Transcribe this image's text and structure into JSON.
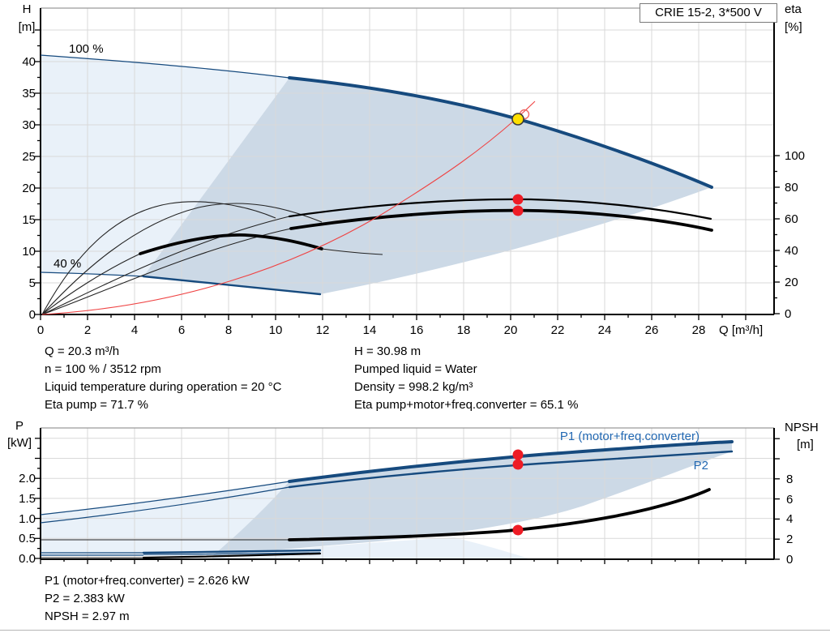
{
  "window": {
    "product_label": "CRIE 15-2, 3*500 V"
  },
  "top_chart": {
    "y_left_axis": {
      "name": "H",
      "unit": "[m]",
      "ticks": [
        "0",
        "5",
        "10",
        "15",
        "20",
        "25",
        "30",
        "35",
        "40"
      ]
    },
    "y_right_axis": {
      "name": "eta",
      "unit": "[%]",
      "ticks": [
        "0",
        "20",
        "40",
        "60",
        "80",
        "100"
      ]
    },
    "x_axis": {
      "ticks": [
        "0",
        "2",
        "4",
        "6",
        "8",
        "10",
        "12",
        "14",
        "16",
        "18",
        "20",
        "22",
        "24",
        "26",
        "28"
      ],
      "label": "Q [m³/h]"
    },
    "annotations": {
      "speed_100": "100 %",
      "speed_40": "40 %"
    }
  },
  "bottom_chart": {
    "y_left_axis": {
      "name": "P",
      "unit": "[kW]",
      "ticks": [
        "0.0",
        "0.5",
        "1.0",
        "1.5",
        "2.0"
      ]
    },
    "y_right_axis": {
      "name": "NPSH",
      "unit": "[m]",
      "ticks": [
        "0",
        "2",
        "4",
        "6",
        "8"
      ]
    },
    "curve_labels": {
      "p1": "P1 (motor+freq.converter)",
      "p2": "P2"
    }
  },
  "info_top": {
    "left": [
      "Q = 20.3 m³/h",
      "n = 100 % / 3512 rpm",
      "Liquid temperature during operation = 20 °C",
      "Eta pump = 71.7 %"
    ],
    "right": [
      "H = 30.98 m",
      "Pumped liquid = Water",
      "Density = 998.2 kg/m³",
      "Eta pump+motor+freq.converter = 65.1 %"
    ]
  },
  "info_bottom": {
    "lines": [
      "P1 (motor+freq.converter) = 2.626 kW",
      "P2 = 2.383 kW",
      "NPSH = 2.97 m"
    ]
  },
  "colors": {
    "curve_navy": "#164a7e",
    "curve_black": "#000000",
    "system_red": "#ef4444",
    "dot_red": "#ee1c25",
    "duty_yellow": "#ffdf00",
    "fill_pale": "#e9f1f9",
    "fill_envelope": "#ccd9e6",
    "label_blue": "#2268b2"
  },
  "chart_data": [
    {
      "type": "line",
      "title": "CRIE 15-2, 3*500 V",
      "xlabel": "Q [m³/h]",
      "xlim": [
        0,
        31.4
      ],
      "ylabel_left": "H [m]",
      "ylim_left": [
        0,
        48.5
      ],
      "ylabel_right": "eta [%]",
      "ylim_right": [
        0,
        100
      ],
      "grid": true,
      "series": [
        {
          "name": "head 100% speed",
          "axis": "left",
          "points": [
            [
              0,
              41
            ],
            [
              5,
              40.2
            ],
            [
              10.6,
              37.6
            ],
            [
              15,
              35.2
            ],
            [
              20.3,
              30.98
            ],
            [
              25,
              25.5
            ],
            [
              28.6,
              20.3
            ]
          ]
        },
        {
          "name": "head 40% speed",
          "axis": "left",
          "points": [
            [
              0,
              6.7
            ],
            [
              4.4,
              6.1
            ],
            [
              8,
              4.9
            ],
            [
              11.9,
              3.2
            ]
          ]
        },
        {
          "name": "eta pump",
          "axis": "right",
          "points": [
            [
              0,
              0
            ],
            [
              5,
              30
            ],
            [
              10.6,
              61
            ],
            [
              15,
              68.5
            ],
            [
              20.3,
              71.7
            ],
            [
              25,
              69.5
            ],
            [
              28.5,
              60
            ]
          ]
        },
        {
          "name": "eta pump+motor+freq.converter",
          "axis": "right",
          "points": [
            [
              0,
              0
            ],
            [
              5,
              24
            ],
            [
              10.6,
              53.5
            ],
            [
              15,
              62
            ],
            [
              20.3,
              65.1
            ],
            [
              25,
              64
            ],
            [
              28.5,
              53
            ]
          ]
        },
        {
          "name": "system curve",
          "axis": "left",
          "points": [
            [
              0,
              0
            ],
            [
              5,
              1.9
            ],
            [
              10,
              7.5
            ],
            [
              15,
              16.9
            ],
            [
              20.3,
              30.98
            ]
          ]
        }
      ],
      "operating_point": {
        "Q": 20.3,
        "H": 30.98
      },
      "annotations": [
        "100 %",
        "40 %"
      ]
    },
    {
      "type": "line",
      "xlabel": "Q [m³/h]",
      "xlim": [
        0,
        31.4
      ],
      "ylabel_left": "P [kW]",
      "ylim_left": [
        0,
        3.25
      ],
      "ylabel_right": "NPSH [m]",
      "ylim_right": [
        0,
        13
      ],
      "grid": true,
      "series": [
        {
          "name": "P1 (motor+freq.converter)",
          "axis": "left",
          "points": [
            [
              0,
              1.09
            ],
            [
              10.6,
              1.92
            ],
            [
              20.3,
              2.626
            ],
            [
              29.4,
              2.92
            ]
          ]
        },
        {
          "name": "P2",
          "axis": "left",
          "points": [
            [
              0,
              0.89
            ],
            [
              10.6,
              1.78
            ],
            [
              20.3,
              2.383
            ],
            [
              29.4,
              2.67
            ]
          ]
        },
        {
          "name": "P1 40% speed",
          "axis": "left",
          "points": [
            [
              0,
              0.14
            ],
            [
              11.9,
              0.2
            ]
          ]
        },
        {
          "name": "P2 40% speed",
          "axis": "left",
          "points": [
            [
              0,
              0.08
            ],
            [
              11.9,
              0.14
            ]
          ]
        },
        {
          "name": "NPSH",
          "axis": "right",
          "points": [
            [
              0,
              1.9
            ],
            [
              10.6,
              1.95
            ],
            [
              20.3,
              2.97
            ],
            [
              28.5,
              6.9
            ]
          ]
        }
      ],
      "operating_points": [
        {
          "Q": 20.3,
          "P1": 2.626
        },
        {
          "Q": 20.3,
          "P2": 2.383
        },
        {
          "Q": 20.3,
          "NPSH": 2.97
        }
      ]
    }
  ]
}
